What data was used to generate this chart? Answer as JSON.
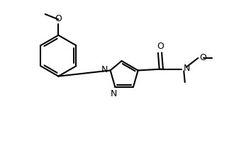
{
  "background": "#ffffff",
  "line_color": "#000000",
  "line_width": 1.5,
  "font_size": 9,
  "fig_width": 3.54,
  "fig_height": 2.02,
  "dpi": 100,
  "xlim": [
    0,
    9.5
  ],
  "ylim": [
    0,
    5.4
  ]
}
